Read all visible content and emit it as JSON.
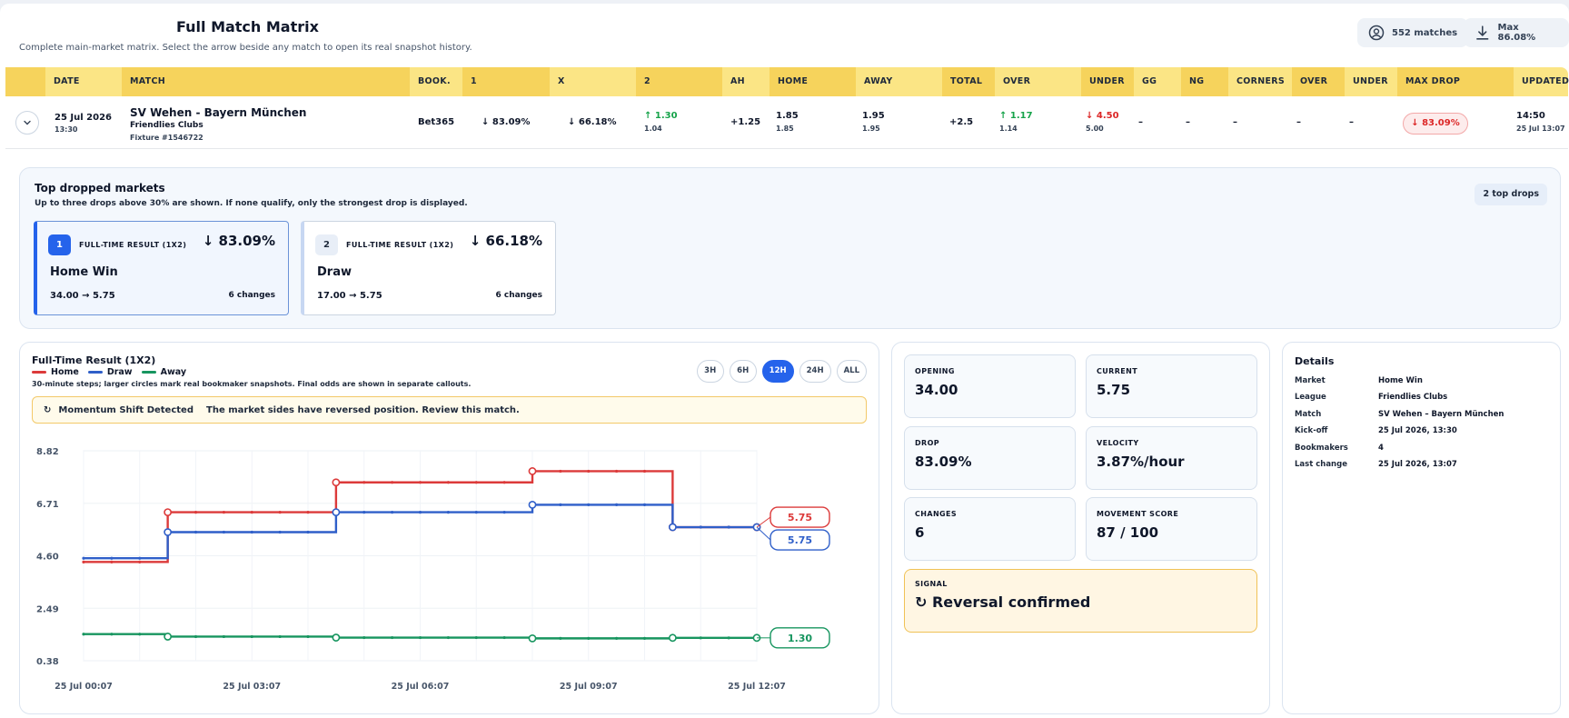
{
  "header": {
    "title": "Full Match Matrix",
    "subtitle": "Complete main-market matrix. Select the arrow beside any match to open its real snapshot history.",
    "matches_label": "552 matches",
    "max_label": "Max 86.08%",
    "matches_icon": "matches-icon",
    "download_icon": "download-icon"
  },
  "table": {
    "columns": [
      "DATE",
      "MATCH",
      "BOOK.",
      "1",
      "X",
      "2",
      "AH",
      "HOME",
      "AWAY",
      "TOTAL",
      "OVER",
      "UNDER",
      "GG",
      "NG",
      "CORNERS",
      "OVER",
      "UNDER",
      "MAX DROP",
      "UPDATED"
    ],
    "row": {
      "date": "25 Jul 2026",
      "time": "13:30",
      "match": "SV Wehen - Bayern München",
      "league": "Friendlies Clubs",
      "fixture": "Fixture #1546722",
      "book": "Bet365",
      "one": "↓ 83.09%",
      "x": "↓ 66.18%",
      "two": "↑ 1.30",
      "two_sub": "1.04",
      "ah": "+1.25",
      "home": "1.85",
      "home_sub": "1.85",
      "away": "1.95",
      "away_sub": "1.95",
      "total": "+2.5",
      "over": "↑ 1.17",
      "over_sub": "1.14",
      "under": "↓ 4.50",
      "under_sub": "5.00",
      "gg": "–",
      "ng": "–",
      "corners": "–",
      "c_over": "–",
      "c_under": "–",
      "max_drop": "↓ 83.09%",
      "updated_time": "14:50",
      "updated_date": "25 Jul 13:07"
    }
  },
  "drops": {
    "title": "Top dropped markets",
    "subtitle": "Up to three drops above 30% are shown. If none qualify, only the strongest drop is displayed.",
    "count_label": "2 top drops",
    "cards": [
      {
        "rank": "1",
        "market": "FULL-TIME RESULT (1X2)",
        "pct": "↓ 83.09%",
        "name": "Home Win",
        "range": "34.00 → 5.75",
        "changes": "6 changes"
      },
      {
        "rank": "2",
        "market": "FULL-TIME RESULT (1X2)",
        "pct": "↓ 66.18%",
        "name": "Draw",
        "range": "17.00 → 5.75",
        "changes": "6 changes"
      }
    ]
  },
  "chart_panel": {
    "title": "Full-Time Result (1X2)",
    "note": "30-minute steps; larger circles mark real bookmaker snapshots. Final odds are shown in separate callouts.",
    "ranges": [
      "3H",
      "6H",
      "12H",
      "24H",
      "ALL"
    ],
    "active_range": "12H",
    "alert_icon": "reversal-icon",
    "alert_title": "Momentum Shift Detected",
    "alert_msg": "The market sides have reversed position. Review this match."
  },
  "chart_data": {
    "type": "line",
    "y_ticks": [
      "8.82",
      "6.71",
      "4.60",
      "2.49",
      "0.38"
    ],
    "ylim": [
      0.38,
      8.82
    ],
    "x_ticks": [
      "25 Jul 00:07",
      "25 Jul 03:07",
      "25 Jul 06:07",
      "25 Jul 09:07",
      "25 Jul 12:07"
    ],
    "grid": true,
    "colors": {
      "Home": "#dc3a3a",
      "Draw": "#2f5fc9",
      "Away": "#17955f"
    },
    "series": [
      {
        "name": "Home",
        "final": "5.75",
        "step_times": [
          "00:07",
          "01:37",
          "04:37",
          "08:07",
          "10:37",
          "12:07"
        ],
        "values": [
          4.35,
          6.35,
          7.55,
          8.0,
          5.75,
          5.75
        ]
      },
      {
        "name": "Draw",
        "final": "5.75",
        "step_times": [
          "00:07",
          "01:37",
          "04:37",
          "08:07",
          "10:37",
          "12:07"
        ],
        "values": [
          4.5,
          5.55,
          6.35,
          6.65,
          5.75,
          5.75
        ]
      },
      {
        "name": "Away",
        "final": "1.30",
        "step_times": [
          "00:07",
          "01:37",
          "04:37",
          "08:07",
          "10:37",
          "12:07"
        ],
        "values": [
          1.45,
          1.35,
          1.31,
          1.28,
          1.3,
          1.3
        ]
      }
    ]
  },
  "stats": {
    "opening_label": "OPENING",
    "opening": "34.00",
    "current_label": "CURRENT",
    "current": "5.75",
    "drop_label": "DROP",
    "drop": "83.09%",
    "velocity_label": "VELOCITY",
    "velocity": "3.87%/hour",
    "changes_label": "CHANGES",
    "changes": "6",
    "score_label": "MOVEMENT SCORE",
    "score": "87 / 100",
    "signal_label": "SIGNAL",
    "signal": "↻ Reversal confirmed"
  },
  "details": {
    "title": "Details",
    "rows": [
      {
        "k": "Market",
        "v": "Home Win"
      },
      {
        "k": "League",
        "v": "Friendlies Clubs"
      },
      {
        "k": "Match",
        "v": "SV Wehen – Bayern München"
      },
      {
        "k": "Kick-off",
        "v": "25 Jul 2026, 13:30"
      },
      {
        "k": "Bookmakers",
        "v": "4"
      },
      {
        "k": "Last change",
        "v": "25 Jul 2026, 13:07"
      }
    ]
  }
}
